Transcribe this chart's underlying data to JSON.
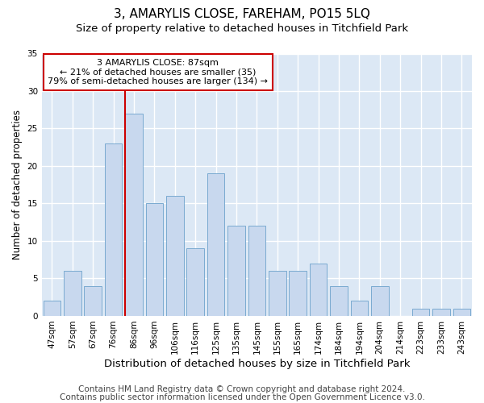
{
  "title": "3, AMARYLIS CLOSE, FAREHAM, PO15 5LQ",
  "subtitle": "Size of property relative to detached houses in Titchfield Park",
  "xlabel": "Distribution of detached houses by size in Titchfield Park",
  "ylabel": "Number of detached properties",
  "categories": [
    "47sqm",
    "57sqm",
    "67sqm",
    "76sqm",
    "86sqm",
    "96sqm",
    "106sqm",
    "116sqm",
    "125sqm",
    "135sqm",
    "145sqm",
    "155sqm",
    "165sqm",
    "174sqm",
    "184sqm",
    "194sqm",
    "204sqm",
    "214sqm",
    "223sqm",
    "233sqm",
    "243sqm"
  ],
  "values": [
    2,
    6,
    4,
    23,
    27,
    15,
    16,
    9,
    19,
    12,
    12,
    6,
    6,
    7,
    4,
    2,
    4,
    0,
    1,
    1,
    1
  ],
  "bar_color": "#c8d8ee",
  "bar_edgecolor": "#7aaad0",
  "highlight_index": 4,
  "highlight_color": "#cc0000",
  "ylim": [
    0,
    35
  ],
  "yticks": [
    0,
    5,
    10,
    15,
    20,
    25,
    30,
    35
  ],
  "annotation_title": "3 AMARYLIS CLOSE: 87sqm",
  "annotation_line1": "← 21% of detached houses are smaller (35)",
  "annotation_line2": "79% of semi-detached houses are larger (134) →",
  "footer1": "Contains HM Land Registry data © Crown copyright and database right 2024.",
  "footer2": "Contains public sector information licensed under the Open Government Licence v3.0.",
  "background_color": "#ffffff",
  "plot_bg_color": "#dce8f5",
  "grid_color": "#ffffff",
  "title_fontsize": 11,
  "subtitle_fontsize": 9.5,
  "xlabel_fontsize": 9.5,
  "ylabel_fontsize": 8.5,
  "tick_fontsize": 7.5,
  "annotation_fontsize": 8,
  "footer_fontsize": 7.5
}
